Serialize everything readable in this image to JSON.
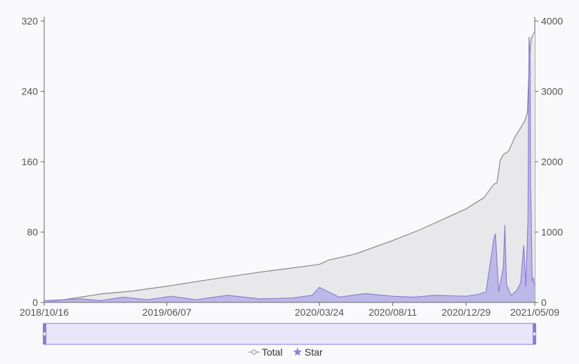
{
  "chart_data": {
    "type": "area",
    "title": "",
    "grid": false,
    "legend_position": "bottom-center",
    "x_tick_labels": [
      "2018/10/16",
      "2019/06/07",
      "2020/03/24",
      "2020/08/11",
      "2020/12/29",
      "2021/05/09"
    ],
    "y_left_lim": [
      0,
      320
    ],
    "y_left_ticks": [
      "0",
      "80",
      "160",
      "240",
      "320"
    ],
    "y_right_lim": [
      0,
      4000
    ],
    "y_right_ticks": [
      "0",
      "1000",
      "2000",
      "3000",
      "4000"
    ],
    "series": [
      {
        "name": "Total",
        "axis": "right",
        "color": "#888888",
        "fill": "#e8e8ea",
        "points": [
          [
            "2018/10/16",
            0
          ],
          [
            "2018/11/15",
            30
          ],
          [
            "2018/12/20",
            70
          ],
          [
            "2019/02/01",
            120
          ],
          [
            "2019/04/01",
            160
          ],
          [
            "2019/06/07",
            230
          ],
          [
            "2019/09/01",
            330
          ],
          [
            "2019/12/01",
            430
          ],
          [
            "2020/03/24",
            540
          ],
          [
            "2020/04/10",
            600
          ],
          [
            "2020/06/01",
            690
          ],
          [
            "2020/08/11",
            880
          ],
          [
            "2020/10/01",
            1030
          ],
          [
            "2020/12/29",
            1330
          ],
          [
            "2021/02/01",
            1490
          ],
          [
            "2021/02/20",
            1680
          ],
          [
            "2021/02/26",
            1700
          ],
          [
            "2021/03/04",
            2020
          ],
          [
            "2021/03/10",
            2100
          ],
          [
            "2021/03/20",
            2150
          ],
          [
            "2021/04/01",
            2350
          ],
          [
            "2021/04/12",
            2480
          ],
          [
            "2021/04/20",
            2580
          ],
          [
            "2021/04/25",
            2700
          ],
          [
            "2021/04/27",
            3100
          ],
          [
            "2021/04/29",
            3450
          ],
          [
            "2021/05/02",
            3750
          ],
          [
            "2021/05/09",
            3850
          ]
        ]
      },
      {
        "name": "Star",
        "axis": "left",
        "color": "#8a7fd4",
        "fill": "#b0a8e6",
        "points": [
          [
            "2018/10/16",
            2
          ],
          [
            "2018/11/20",
            3
          ],
          [
            "2018/12/25",
            4
          ],
          [
            "2019/02/01",
            2
          ],
          [
            "2019/03/15",
            6
          ],
          [
            "2019/05/01",
            3
          ],
          [
            "2019/06/15",
            7
          ],
          [
            "2019/08/01",
            3
          ],
          [
            "2019/10/01",
            8
          ],
          [
            "2019/12/01",
            4
          ],
          [
            "2020/02/01",
            5
          ],
          [
            "2020/03/10",
            8
          ],
          [
            "2020/03/24",
            17
          ],
          [
            "2020/05/01",
            6
          ],
          [
            "2020/06/20",
            10
          ],
          [
            "2020/08/11",
            7
          ],
          [
            "2020/09/20",
            6
          ],
          [
            "2020/11/01",
            8
          ],
          [
            "2020/12/29",
            7
          ],
          [
            "2021/01/20",
            9
          ],
          [
            "2021/02/05",
            12
          ],
          [
            "2021/02/20",
            73
          ],
          [
            "2021/02/23",
            78
          ],
          [
            "2021/02/26",
            45
          ],
          [
            "2021/03/01",
            12
          ],
          [
            "2021/03/10",
            40
          ],
          [
            "2021/03/13",
            88
          ],
          [
            "2021/03/16",
            20
          ],
          [
            "2021/03/25",
            8
          ],
          [
            "2021/04/05",
            14
          ],
          [
            "2021/04/12",
            22
          ],
          [
            "2021/04/18",
            65
          ],
          [
            "2021/04/22",
            18
          ],
          [
            "2021/04/26",
            95
          ],
          [
            "2021/04/28",
            302
          ],
          [
            "2021/04/30",
            280
          ],
          [
            "2021/05/01",
            135
          ],
          [
            "2021/05/02",
            105
          ],
          [
            "2021/05/04",
            24
          ],
          [
            "2021/05/06",
            28
          ],
          [
            "2021/05/09",
            18
          ]
        ]
      }
    ],
    "data_zoom": {
      "start": 0,
      "end": 100
    }
  }
}
